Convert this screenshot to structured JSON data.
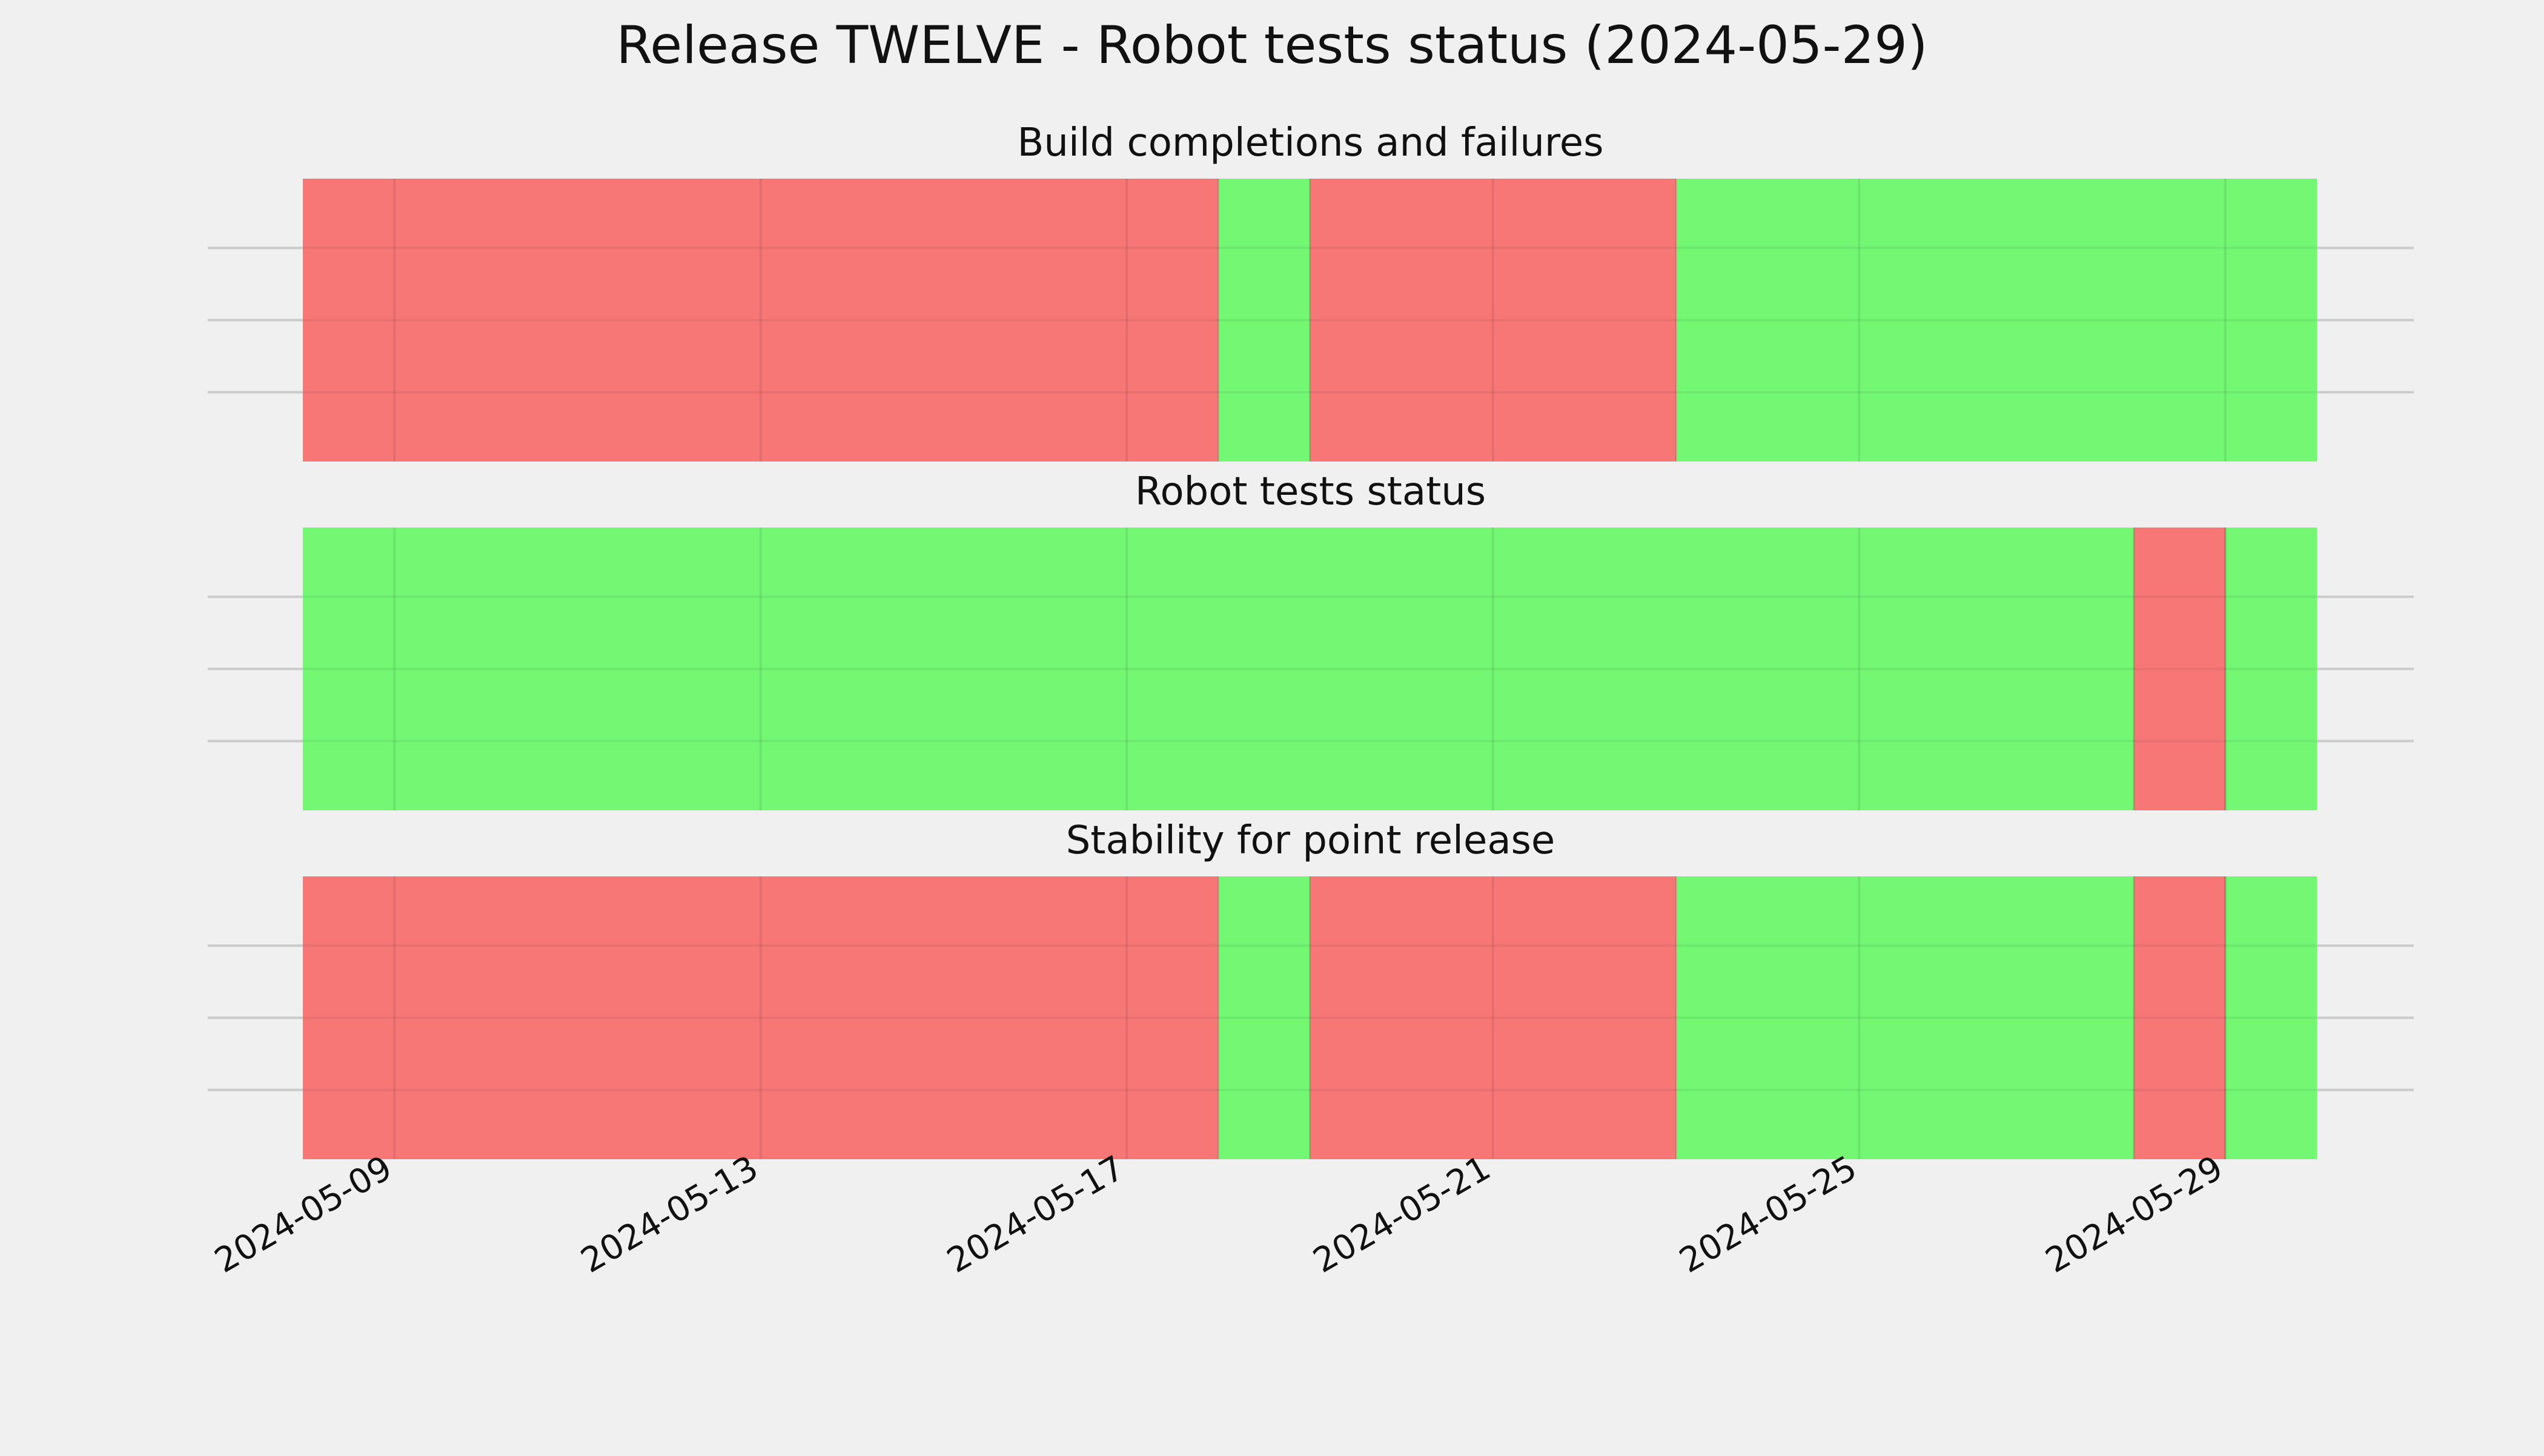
{
  "chart_data": {
    "type": "timeline",
    "title": "Release TWELVE - Robot tests status (2024-05-29)",
    "x_axis": {
      "type": "date",
      "range": [
        "2024-05-08",
        "2024-05-30"
      ],
      "tick_labels": [
        "2024-05-09",
        "2024-05-13",
        "2024-05-17",
        "2024-05-21",
        "2024-05-25",
        "2024-05-29"
      ]
    },
    "grid": true,
    "colors": {
      "pass": "#74f874",
      "fail": "#f77777",
      "background": "#f0f0f0"
    },
    "panels": [
      {
        "title": "Build completions and failures",
        "segments": [
          {
            "start": "2024-05-08",
            "end": "2024-05-18",
            "status": "fail"
          },
          {
            "start": "2024-05-18",
            "end": "2024-05-19",
            "status": "pass"
          },
          {
            "start": "2024-05-19",
            "end": "2024-05-23",
            "status": "fail"
          },
          {
            "start": "2024-05-23",
            "end": "2024-05-30",
            "status": "pass"
          }
        ]
      },
      {
        "title": "Robot tests status",
        "segments": [
          {
            "start": "2024-05-08",
            "end": "2024-05-28",
            "status": "pass"
          },
          {
            "start": "2024-05-28",
            "end": "2024-05-29",
            "status": "fail"
          },
          {
            "start": "2024-05-29",
            "end": "2024-05-30",
            "status": "pass"
          }
        ]
      },
      {
        "title": "Stability for point release",
        "segments": [
          {
            "start": "2024-05-08",
            "end": "2024-05-18",
            "status": "fail"
          },
          {
            "start": "2024-05-18",
            "end": "2024-05-19",
            "status": "pass"
          },
          {
            "start": "2024-05-19",
            "end": "2024-05-23",
            "status": "fail"
          },
          {
            "start": "2024-05-23",
            "end": "2024-05-28",
            "status": "pass"
          },
          {
            "start": "2024-05-28",
            "end": "2024-05-29",
            "status": "fail"
          },
          {
            "start": "2024-05-29",
            "end": "2024-05-30",
            "status": "pass"
          }
        ]
      }
    ]
  }
}
